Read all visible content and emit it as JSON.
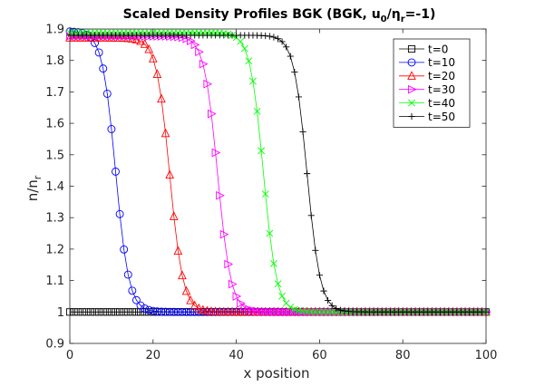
{
  "chart_data": {
    "type": "line",
    "title": {
      "prefix": "Scaled Density Profiles BGK (BGK, u",
      "sub1": "0",
      "mid": "/η",
      "sub2": "r",
      "suffix": "=-1)"
    },
    "xlabel": "x position",
    "ylabel": {
      "main": "n/n",
      "sub": "r"
    },
    "xlim": [
      0,
      100
    ],
    "ylim": [
      0.9,
      1.9
    ],
    "xticks": [
      0,
      20,
      40,
      60,
      80,
      100
    ],
    "yticks": [
      0.9,
      1,
      1.1,
      1.2,
      1.3,
      1.4,
      1.5,
      1.6,
      1.7,
      1.8,
      1.9
    ],
    "ytick_labels": [
      "0.9",
      "1",
      "1.1",
      "1.2",
      "1.3",
      "1.4",
      "1.5",
      "1.6",
      "1.7",
      "1.8",
      "1.9"
    ],
    "grid": false,
    "legend_position": "top-right",
    "series": [
      {
        "name": "t=0",
        "color": "#000000",
        "marker": "square",
        "marker_step": 1,
        "profile": {
          "high": 1.0,
          "low": 1.0,
          "x0": 0,
          "width": 1
        }
      },
      {
        "name": "t=10",
        "color": "#0000ff",
        "marker": "circle",
        "marker_step": 1,
        "profile": {
          "high": 1.893,
          "low": 1.0,
          "x0": 11.0,
          "width": 1.6
        }
      },
      {
        "name": "t=20",
        "color": "#ff0000",
        "marker": "triangle-up",
        "marker_step": 1,
        "profile": {
          "high": 1.872,
          "low": 1.0,
          "x0": 24.0,
          "width": 1.6
        }
      },
      {
        "name": "t=30",
        "color": "#ff00ff",
        "marker": "triangle-right",
        "marker_step": 1,
        "profile": {
          "high": 1.877,
          "low": 1.0,
          "x0": 35.5,
          "width": 1.6
        }
      },
      {
        "name": "t=40",
        "color": "#00ff00",
        "marker": "x",
        "marker_step": 1,
        "profile": {
          "high": 1.888,
          "low": 1.0,
          "x0": 46.5,
          "width": 1.6
        }
      },
      {
        "name": "t=50",
        "color": "#000000",
        "marker": "plus",
        "marker_step": 1,
        "profile": {
          "high": 1.88,
          "low": 1.0,
          "x0": 57.0,
          "width": 1.6
        }
      }
    ]
  }
}
